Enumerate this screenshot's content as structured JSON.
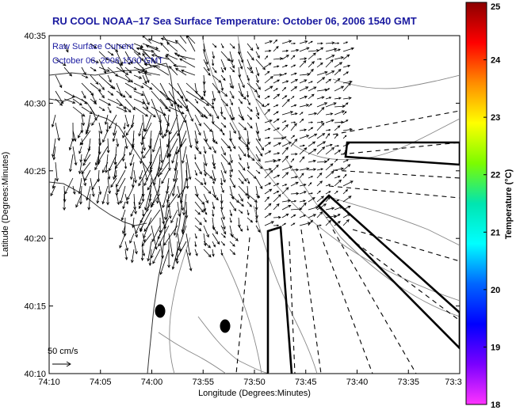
{
  "title": "RU COOL  NOAA–17  Sea Surface Temperature:  October 06, 2006 1540 GMT",
  "annotation": {
    "line1": "Raw Surface Current",
    "line2": "October 06, 2006 1500 GMT"
  },
  "axes": {
    "xlabel": "Longitude (Degrees:Minutes)",
    "ylabel": "Latitude (Degrees:Minutes)",
    "xticks": [
      "74:10",
      "74:05",
      "74:00",
      "73:55",
      "73:50",
      "73:45",
      "73:40",
      "73:35",
      "73:3"
    ],
    "yticks": [
      "40:35",
      "40:30",
      "40:25",
      "40:20",
      "40:15",
      "40:10"
    ]
  },
  "scale": {
    "label": "50 cm/s"
  },
  "colorbar": {
    "label": "Temperature (°C)",
    "ticks": [
      "25",
      "24",
      "23",
      "22",
      "21",
      "20",
      "19",
      "18"
    ],
    "stops": [
      "#8b0000",
      "#ff0000",
      "#ff8c00",
      "#ffff00",
      "#7cfc00",
      "#00e5b0",
      "#00ffff",
      "#0066ff",
      "#0000ff",
      "#7a00ff",
      "#ff33ff"
    ]
  },
  "colors": {
    "title": "#1a1aa0",
    "lines": "#000000",
    "contours": "#888888"
  },
  "chart_data": {
    "type": "map",
    "xlabel": "Longitude (Degrees:Minutes)",
    "ylabel": "Latitude (Degrees:Minutes)",
    "xlim": [
      "74:10",
      "73:30"
    ],
    "ylim": [
      "40:10",
      "40:35"
    ],
    "colorbar_range": [
      18,
      25
    ],
    "grid": false
  }
}
